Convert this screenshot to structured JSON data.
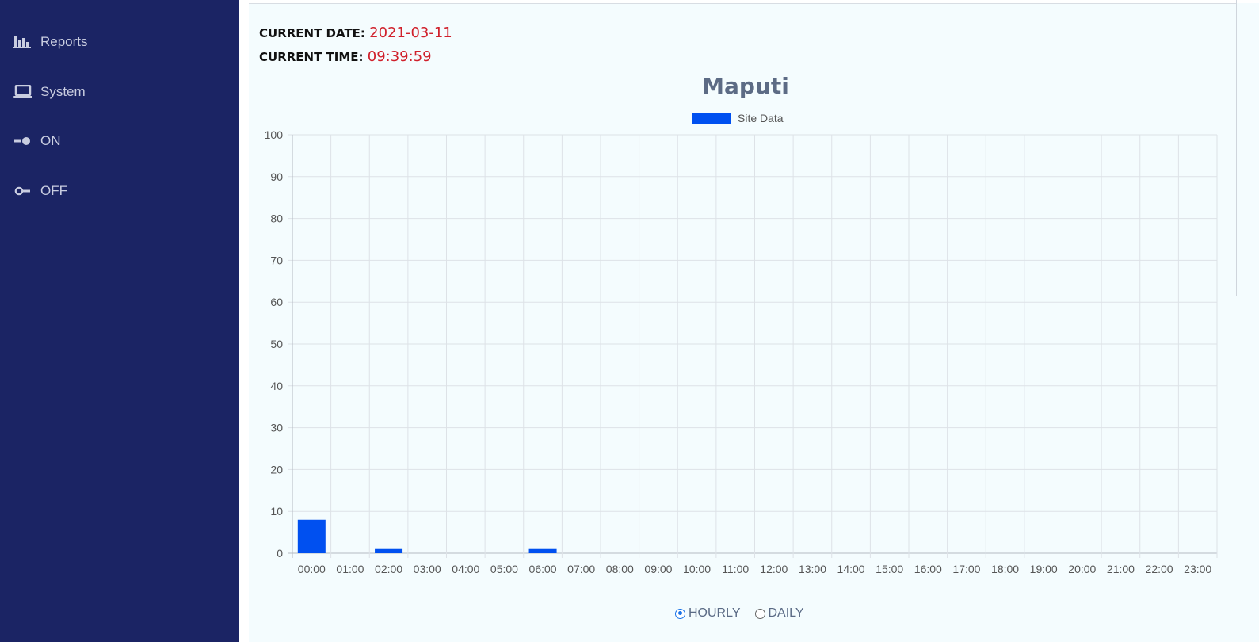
{
  "sidebar": {
    "items": [
      {
        "label": "Reports",
        "icon": "bar-chart-icon"
      },
      {
        "label": "System",
        "icon": "laptop-icon"
      },
      {
        "label": "ON",
        "icon": "toggle-on-icon"
      },
      {
        "label": "OFF",
        "icon": "toggle-off-icon"
      }
    ]
  },
  "info": {
    "date_label": "CURRENT DATE:",
    "date_value": "2021-03-11",
    "time_label": "CURRENT TIME:",
    "time_value": "09:39:59"
  },
  "chart_data": {
    "type": "bar",
    "title": "Maputi",
    "legend": "top",
    "grid": true,
    "xlabel": "",
    "ylabel": "",
    "ylim": [
      0,
      100
    ],
    "yticks": [
      0,
      10,
      20,
      30,
      40,
      50,
      60,
      70,
      80,
      90,
      100
    ],
    "categories": [
      "00:00",
      "01:00",
      "02:00",
      "03:00",
      "04:00",
      "05:00",
      "06:00",
      "07:00",
      "08:00",
      "09:00",
      "10:00",
      "11:00",
      "12:00",
      "13:00",
      "14:00",
      "15:00",
      "16:00",
      "17:00",
      "18:00",
      "19:00",
      "20:00",
      "21:00",
      "22:00",
      "23:00"
    ],
    "series": [
      {
        "name": "Site Data",
        "color": "#0050f0",
        "values": [
          8,
          0,
          1,
          0,
          0,
          0,
          1,
          0,
          0,
          0,
          0,
          0,
          0,
          0,
          0,
          0,
          0,
          0,
          0,
          0,
          0,
          0,
          0,
          0
        ]
      }
    ]
  },
  "mode": {
    "options": [
      {
        "label": "HOURLY",
        "checked": true
      },
      {
        "label": "DAILY",
        "checked": false
      }
    ]
  },
  "colors": {
    "sidebar_bg": "#1b2464",
    "accent_red": "#d0202b",
    "bar_blue": "#0050f0"
  }
}
